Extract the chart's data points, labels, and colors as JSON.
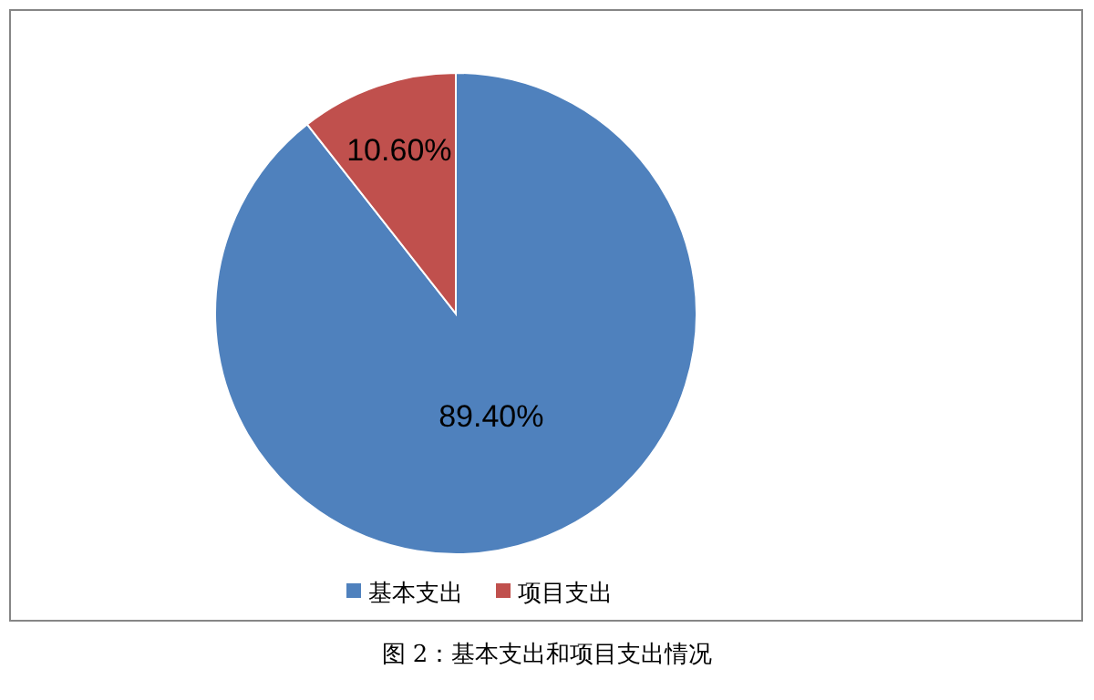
{
  "chart_data": {
    "type": "pie",
    "categories": [
      "基本支出",
      "项目支出"
    ],
    "values": [
      89.4,
      10.6
    ],
    "colors": [
      "#4f81bd",
      "#c0504d"
    ],
    "value_labels": [
      "89.40%",
      "10.60%"
    ],
    "legend": "bottom",
    "annotations": [
      "图 2：基本支出和项目支出情况"
    ]
  }
}
